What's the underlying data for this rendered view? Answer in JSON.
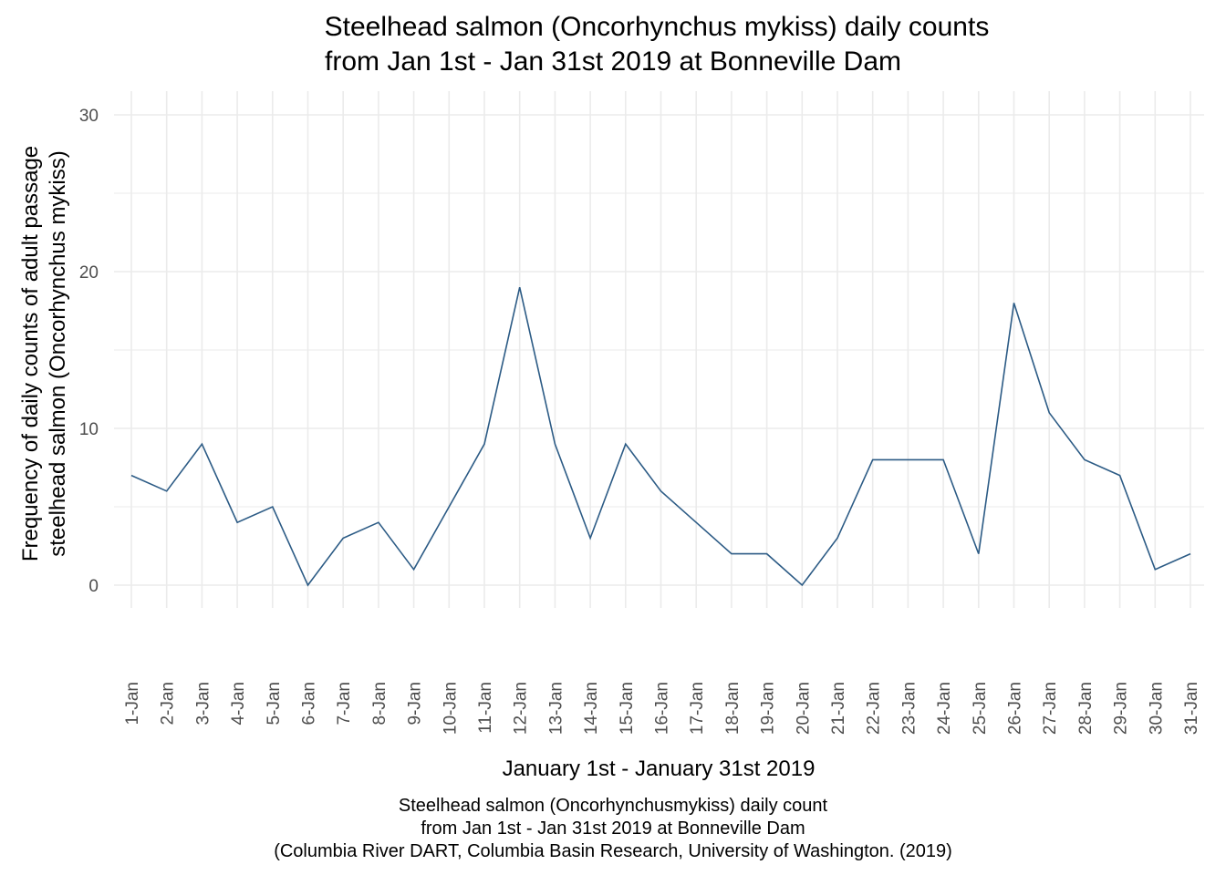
{
  "chart_data": {
    "type": "line",
    "title": "Steelhead salmon (Oncorhynchus mykiss) daily counts",
    "subtitle": "from Jan 1st - Jan 31st 2019 at Bonneville Dam",
    "xlabel": "January 1st - January 31st 2019",
    "ylabel_line1": "Frequency of daily counts of adult passage",
    "ylabel_line2": "steelhead salmon (Oncorhynchus mykiss)",
    "categories": [
      "1-Jan",
      "2-Jan",
      "3-Jan",
      "4-Jan",
      "5-Jan",
      "6-Jan",
      "7-Jan",
      "8-Jan",
      "9-Jan",
      "10-Jan",
      "11-Jan",
      "12-Jan",
      "13-Jan",
      "14-Jan",
      "15-Jan",
      "16-Jan",
      "17-Jan",
      "18-Jan",
      "19-Jan",
      "20-Jan",
      "21-Jan",
      "22-Jan",
      "23-Jan",
      "24-Jan",
      "25-Jan",
      "26-Jan",
      "27-Jan",
      "28-Jan",
      "29-Jan",
      "30-Jan",
      "31-Jan"
    ],
    "values": [
      7,
      6,
      9,
      4,
      5,
      0,
      3,
      4,
      1,
      5,
      9,
      19,
      9,
      3,
      9,
      6,
      4,
      2,
      2,
      0,
      3,
      8,
      8,
      8,
      2,
      18,
      11,
      8,
      7,
      1,
      2
    ],
    "ylim": [
      -1.5,
      31
    ],
    "yticks": [
      0,
      10,
      20,
      30
    ],
    "ytick_labels": [
      "0",
      "10",
      "20",
      "30"
    ],
    "grid": true,
    "line_color": "#2c5b85",
    "grid_color": "#ebebeb",
    "caption_lines": [
      "Steelhead salmon (Oncorhynchusmykiss) daily count",
      "from Jan 1st - Jan 31st 2019 at Bonneville Dam",
      "(Columbia River DART, Columbia Basin Research, University of Washington. (2019)"
    ]
  }
}
